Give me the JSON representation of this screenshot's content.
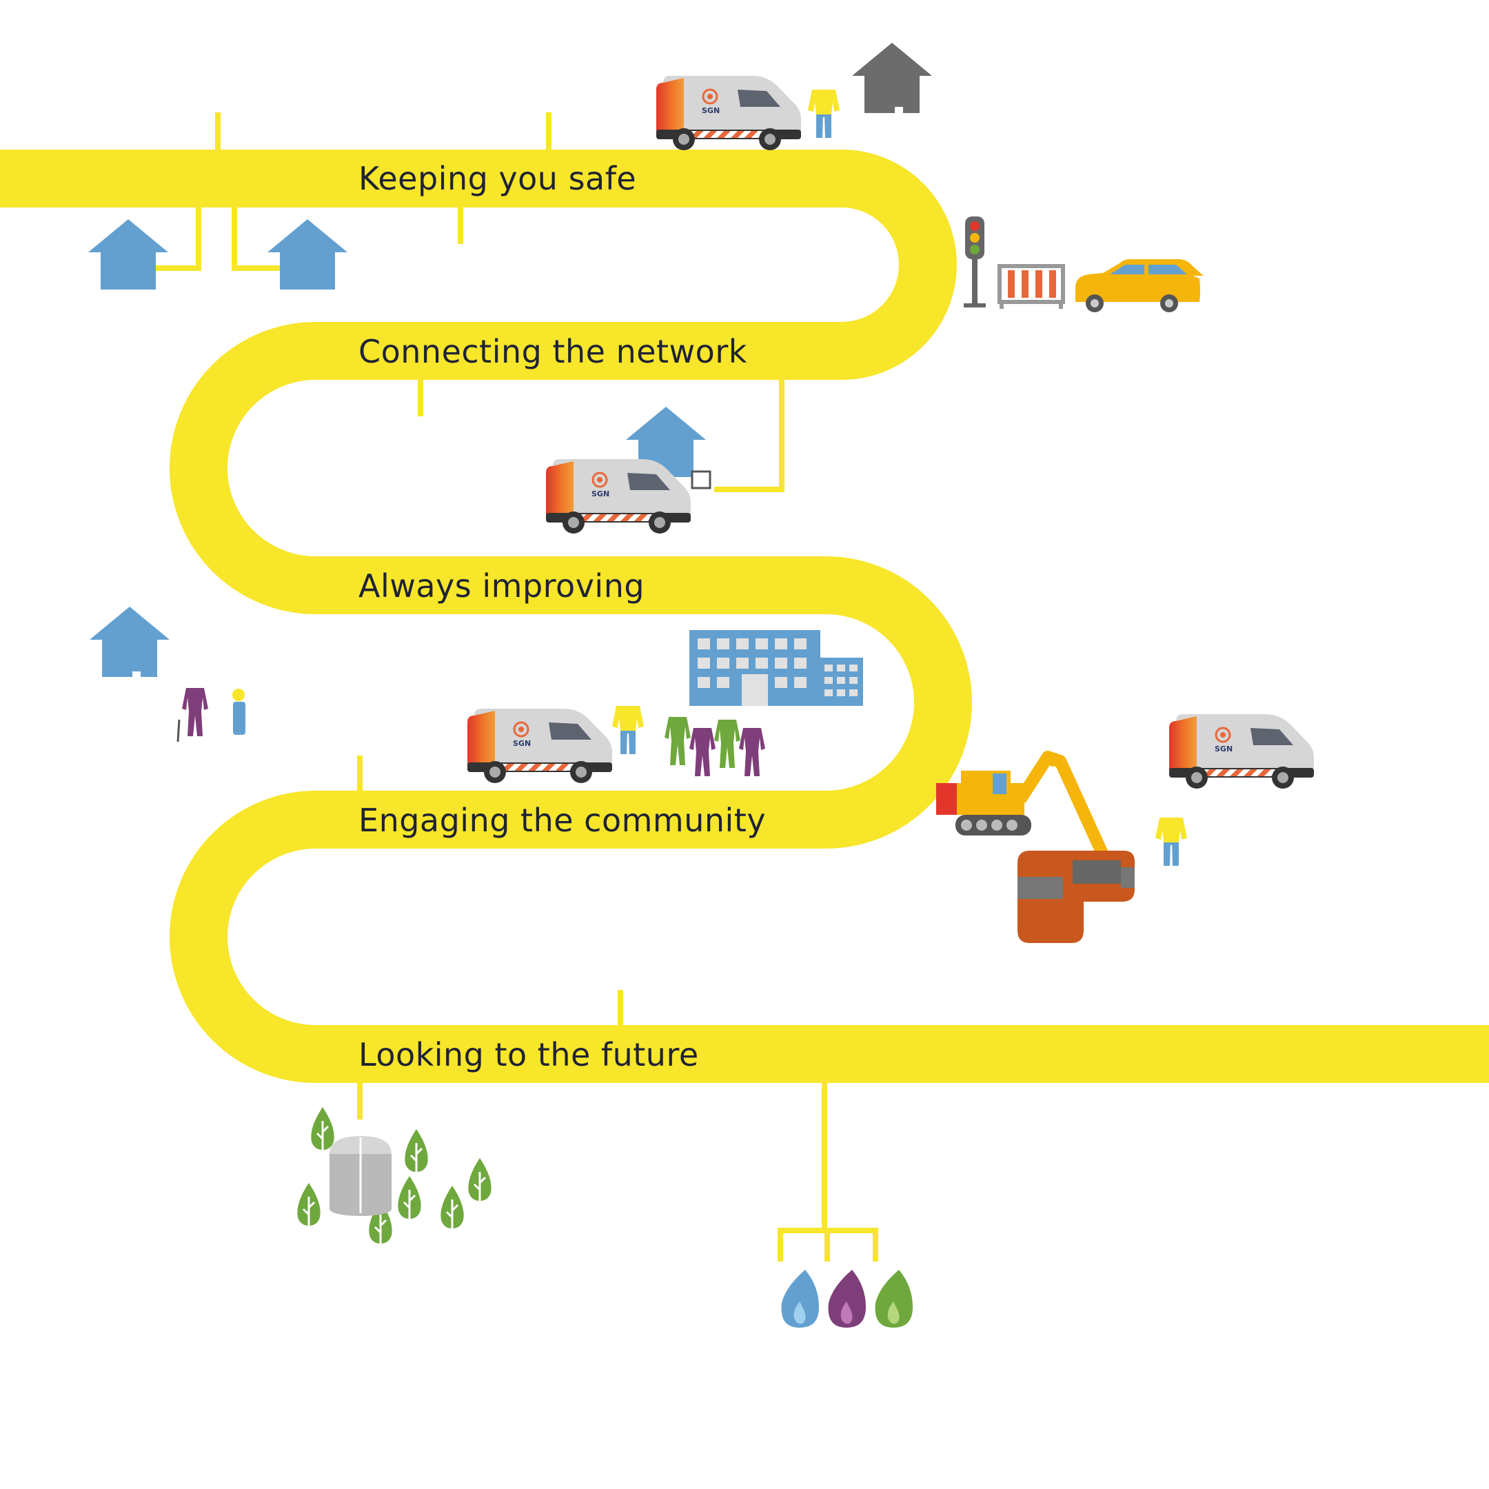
{
  "stages": [
    {
      "id": "keeping-safe",
      "label": "Keeping you safe"
    },
    {
      "id": "connecting",
      "label": "Connecting the network"
    },
    {
      "id": "improving",
      "label": "Always improving"
    },
    {
      "id": "community",
      "label": "Engaging the community"
    },
    {
      "id": "future",
      "label": "Looking to the future"
    }
  ],
  "van": {
    "logo_text": "SGN"
  },
  "colors": {
    "pipe": "#f7e62a",
    "house_blue": "#63a0d0",
    "house_grey": "#6c6c6c",
    "text": "#1f2235",
    "purple": "#7e3e7a",
    "green": "#6fa83d",
    "orange": "#c8581d",
    "car_yellow": "#f5b50a"
  },
  "icons": [
    "van-icon",
    "house-icon",
    "worker-icon",
    "traffic-light-icon",
    "barrier-icon",
    "car-icon",
    "office-building-icon",
    "digger-icon",
    "tree-icon",
    "gas-holder-icon",
    "flame-icon",
    "gas-meter-icon"
  ]
}
